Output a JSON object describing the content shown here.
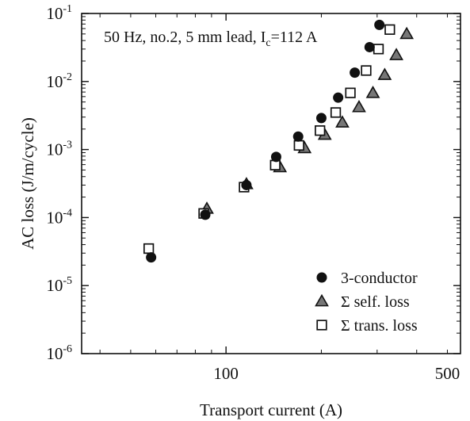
{
  "chart_data": {
    "type": "scatter",
    "title": "50 Hz, no.2, 5 mm lead, I",
    "title_subscript": "c",
    "title_suffix": "=112 A",
    "xlabel": "Transport current (A)",
    "ylabel": "AC loss (J/m/cycle)",
    "x_scale": "log",
    "y_scale": "log",
    "xlim": [
      35,
      550
    ],
    "ylim": [
      1e-06,
      0.1
    ],
    "x_ticks": [
      {
        "value": 100,
        "label": "100"
      },
      {
        "value": 500,
        "label": "500"
      }
    ],
    "y_ticks": [
      {
        "value": 1e-06,
        "base": "10",
        "exp": "-6"
      },
      {
        "value": 1e-05,
        "base": "10",
        "exp": "-5"
      },
      {
        "value": 0.0001,
        "base": "10",
        "exp": "-4"
      },
      {
        "value": 0.001,
        "base": "10",
        "exp": "-3"
      },
      {
        "value": 0.01,
        "base": "10",
        "exp": "-2"
      },
      {
        "value": 0.1,
        "base": "10",
        "exp": "-1"
      }
    ],
    "grid": false,
    "legend_position": "bottom-right",
    "series": [
      {
        "name": "3-conductor",
        "marker": "filled-circle",
        "color": "#111111",
        "points": [
          {
            "x": 58,
            "y": 2.6e-05
          },
          {
            "x": 86,
            "y": 0.00011
          },
          {
            "x": 116,
            "y": 0.0003
          },
          {
            "x": 144,
            "y": 0.00078
          },
          {
            "x": 169,
            "y": 0.00155
          },
          {
            "x": 200,
            "y": 0.0029
          },
          {
            "x": 226,
            "y": 0.0058
          },
          {
            "x": 255,
            "y": 0.0135
          },
          {
            "x": 284,
            "y": 0.032
          },
          {
            "x": 305,
            "y": 0.068
          }
        ]
      },
      {
        "name": "Σ self. loss",
        "marker": "triangle",
        "color": "#111111",
        "points": [
          {
            "x": 87,
            "y": 0.000135
          },
          {
            "x": 116,
            "y": 0.00031
          },
          {
            "x": 148,
            "y": 0.00055
          },
          {
            "x": 177,
            "y": 0.00105
          },
          {
            "x": 205,
            "y": 0.00165
          },
          {
            "x": 233,
            "y": 0.0025
          },
          {
            "x": 263,
            "y": 0.0042
          },
          {
            "x": 291,
            "y": 0.0068
          },
          {
            "x": 317,
            "y": 0.0125
          },
          {
            "x": 345,
            "y": 0.0245
          },
          {
            "x": 372,
            "y": 0.05
          }
        ]
      },
      {
        "name": "Σ trans. loss",
        "marker": "open-square",
        "color": "#111111",
        "points": [
          {
            "x": 57,
            "y": 3.5e-05
          },
          {
            "x": 85,
            "y": 0.000115
          },
          {
            "x": 114,
            "y": 0.00028
          },
          {
            "x": 143,
            "y": 0.00059
          },
          {
            "x": 170,
            "y": 0.00115
          },
          {
            "x": 198,
            "y": 0.0019
          },
          {
            "x": 222,
            "y": 0.0035
          },
          {
            "x": 247,
            "y": 0.0068
          },
          {
            "x": 277,
            "y": 0.0145
          },
          {
            "x": 303,
            "y": 0.03
          },
          {
            "x": 329,
            "y": 0.058
          }
        ]
      }
    ]
  }
}
